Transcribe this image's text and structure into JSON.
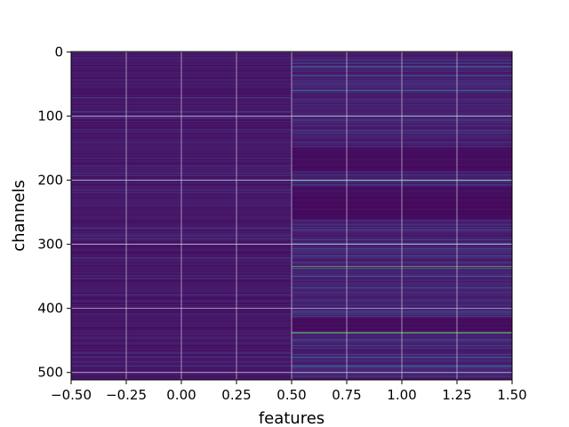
{
  "chart_data": {
    "type": "heatmap",
    "title": "",
    "xlabel": "features",
    "ylabel": "channels",
    "xlim": [
      -0.5,
      1.5
    ],
    "ylim": [
      511.5,
      -0.5
    ],
    "grid": true,
    "colormap": "viridis",
    "n_rows": 512,
    "n_cols": 2,
    "xticks": [
      -0.5,
      -0.25,
      0.0,
      0.25,
      0.5,
      0.75,
      1.0,
      1.25,
      1.5
    ],
    "xtick_labels": [
      "−0.50",
      "−0.25",
      "0.00",
      "0.25",
      "0.50",
      "0.75",
      "1.00",
      "1.25",
      "1.50"
    ],
    "yticks": [
      0,
      100,
      200,
      300,
      400,
      500
    ],
    "ytick_labels": [
      "0",
      "100",
      "200",
      "300",
      "400",
      "500"
    ],
    "colors": {
      "low": "#440154",
      "base_col0": "#46196b",
      "base_col1": "#3e1262",
      "dark_block": "#42085a",
      "grid": "#d6d6e6"
    },
    "highlights": [
      {
        "col": 0,
        "row": 200,
        "value": 0.42
      },
      {
        "col": 0,
        "row": 93,
        "value": 0.32
      },
      {
        "col": 0,
        "row": 300,
        "value": 0.3
      },
      {
        "col": 0,
        "row": 400,
        "value": 0.34
      },
      {
        "col": 1,
        "row": 18,
        "value": 0.4
      },
      {
        "col": 1,
        "row": 23,
        "value": 0.36
      },
      {
        "col": 1,
        "row": 60,
        "value": 0.42
      },
      {
        "col": 1,
        "row": 100,
        "value": 0.3
      },
      {
        "col": 1,
        "row": 200,
        "value": 0.55
      },
      {
        "col": 1,
        "row": 201,
        "value": 0.5
      },
      {
        "col": 1,
        "row": 300,
        "value": 0.45
      },
      {
        "col": 1,
        "row": 307,
        "value": 0.38
      },
      {
        "col": 1,
        "row": 335,
        "value": 0.92
      },
      {
        "col": 1,
        "row": 337,
        "value": 0.7
      },
      {
        "col": 1,
        "row": 350,
        "value": 0.34
      },
      {
        "col": 1,
        "row": 438,
        "value": 0.85
      },
      {
        "col": 1,
        "row": 462,
        "value": 0.4
      },
      {
        "col": 1,
        "row": 476,
        "value": 0.36
      },
      {
        "col": 1,
        "row": 490,
        "value": 0.38
      },
      {
        "col": 1,
        "row": 500,
        "value": 0.3
      }
    ]
  }
}
